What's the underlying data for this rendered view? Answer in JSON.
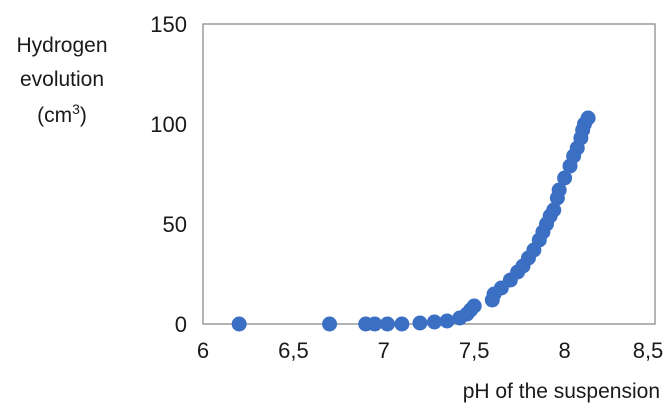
{
  "chart_data": {
    "type": "scatter",
    "title": "",
    "xlabel": "pH of the suspension",
    "ylabel_lines": [
      "Hydrogen",
      "evolution"
    ],
    "ylabel_unit": {
      "prefix": "(cm",
      "sup": "3",
      "suffix": ")"
    },
    "xlim": [
      6,
      8.5
    ],
    "ylim": [
      0,
      150
    ],
    "x_ticks": [
      6,
      6.5,
      7,
      7.5,
      8,
      8.5
    ],
    "x_tick_labels": [
      "6",
      "6,5",
      "7",
      "7,5",
      "8",
      "8,5"
    ],
    "y_ticks": [
      0,
      50,
      100,
      150
    ],
    "y_tick_labels": [
      "0",
      "50",
      "100",
      "150"
    ],
    "grid": false,
    "marker_color": "#3a6fc4",
    "points": [
      {
        "x": 6.2,
        "y": 0
      },
      {
        "x": 6.7,
        "y": 0
      },
      {
        "x": 6.9,
        "y": 0
      },
      {
        "x": 6.95,
        "y": 0
      },
      {
        "x": 7.02,
        "y": 0
      },
      {
        "x": 7.1,
        "y": 0
      },
      {
        "x": 7.2,
        "y": 0.5
      },
      {
        "x": 7.28,
        "y": 1
      },
      {
        "x": 7.35,
        "y": 1.5
      },
      {
        "x": 7.42,
        "y": 3
      },
      {
        "x": 7.46,
        "y": 5
      },
      {
        "x": 7.48,
        "y": 7
      },
      {
        "x": 7.5,
        "y": 9
      },
      {
        "x": 7.6,
        "y": 12
      },
      {
        "x": 7.61,
        "y": 15
      },
      {
        "x": 7.65,
        "y": 18
      },
      {
        "x": 7.7,
        "y": 22
      },
      {
        "x": 7.74,
        "y": 26
      },
      {
        "x": 7.77,
        "y": 29
      },
      {
        "x": 7.8,
        "y": 33
      },
      {
        "x": 7.83,
        "y": 37
      },
      {
        "x": 7.86,
        "y": 42
      },
      {
        "x": 7.88,
        "y": 46
      },
      {
        "x": 7.9,
        "y": 50
      },
      {
        "x": 7.92,
        "y": 54
      },
      {
        "x": 7.94,
        "y": 57
      },
      {
        "x": 7.96,
        "y": 63
      },
      {
        "x": 7.97,
        "y": 67
      },
      {
        "x": 8.0,
        "y": 73
      },
      {
        "x": 8.03,
        "y": 79
      },
      {
        "x": 8.05,
        "y": 84
      },
      {
        "x": 8.07,
        "y": 88
      },
      {
        "x": 8.09,
        "y": 93
      },
      {
        "x": 8.1,
        "y": 97
      },
      {
        "x": 8.11,
        "y": 100
      },
      {
        "x": 8.13,
        "y": 103
      }
    ]
  }
}
